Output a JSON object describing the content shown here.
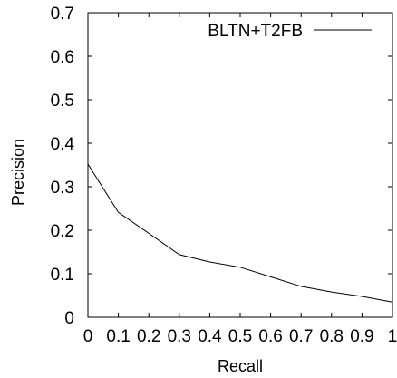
{
  "chart_data": {
    "type": "line",
    "title": "",
    "xlabel": "Recall",
    "ylabel": "Precision",
    "xlim": [
      0,
      1
    ],
    "ylim": [
      0,
      0.7
    ],
    "x_ticks": [
      0,
      0.1,
      0.2,
      0.3,
      0.4,
      0.5,
      0.6,
      0.7,
      0.8,
      0.9,
      1
    ],
    "x_tick_labels": [
      "0",
      "0.1",
      "0.2",
      "0.3",
      "0.4",
      "0.5",
      "0.6",
      "0.7",
      "0.8",
      "0.9",
      "1"
    ],
    "y_ticks": [
      0,
      0.1,
      0.2,
      0.3,
      0.4,
      0.5,
      0.6,
      0.7
    ],
    "y_tick_labels": [
      "0",
      "0.1",
      "0.2",
      "0.3",
      "0.4",
      "0.5",
      "0.6",
      "0.7"
    ],
    "grid": false,
    "legend_position": "top-right",
    "series": [
      {
        "name": "BLTN+T2FB",
        "color": "#000000",
        "x": [
          0,
          0.1,
          0.2,
          0.3,
          0.4,
          0.5,
          0.6,
          0.7,
          0.8,
          0.9,
          1
        ],
        "y": [
          0.352,
          0.241,
          0.193,
          0.144,
          0.127,
          0.115,
          0.093,
          0.071,
          0.058,
          0.048,
          0.035
        ]
      }
    ]
  }
}
